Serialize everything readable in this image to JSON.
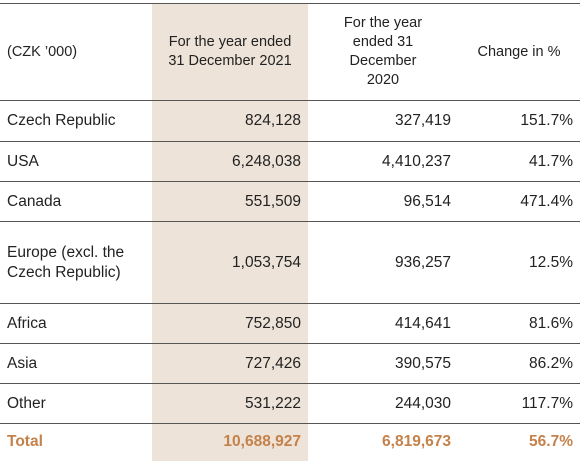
{
  "table": {
    "header": [
      "(CZK ’000)",
      "For the year ended 31 December 2021",
      "For the year ended 31 December 2020",
      "Change in %"
    ],
    "rows": [
      [
        "Czech Republic",
        "824,128",
        "327,419",
        "151.7%"
      ],
      [
        "USA",
        "6,248,038",
        "4,410,237",
        "41.7%"
      ],
      [
        "Canada",
        "551,509",
        "96,514",
        "471.4%"
      ],
      [
        "Europe (excl. the Czech Republic)",
        "1,053,754",
        "936,257",
        "12.5%"
      ],
      [
        "Africa",
        "752,850",
        "414,641",
        "81.6%"
      ],
      [
        "Asia",
        "727,426",
        "390,575",
        "86.2%"
      ],
      [
        "Other",
        "531,222",
        "244,030",
        "117.7%"
      ]
    ],
    "total": [
      "Total",
      "10,688,927",
      "6,819,673",
      "56.7%"
    ]
  }
}
